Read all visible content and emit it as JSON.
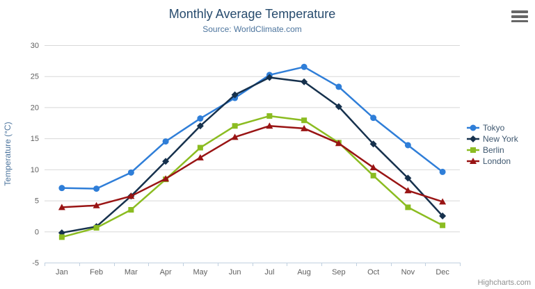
{
  "chart_data": {
    "type": "line",
    "title": "Monthly Average Temperature",
    "subtitle": "Source: WorldClimate.com",
    "categories": [
      "Jan",
      "Feb",
      "Mar",
      "Apr",
      "May",
      "Jun",
      "Jul",
      "Aug",
      "Sep",
      "Oct",
      "Nov",
      "Dec"
    ],
    "series": [
      {
        "name": "Tokyo",
        "color": "#2f7ed8",
        "marker": "circle",
        "values": [
          7.0,
          6.9,
          9.5,
          14.5,
          18.2,
          21.5,
          25.2,
          26.5,
          23.3,
          18.3,
          13.9,
          9.6
        ]
      },
      {
        "name": "New York",
        "color": "#16314d",
        "marker": "diamond",
        "values": [
          -0.2,
          0.8,
          5.7,
          11.3,
          17.0,
          22.0,
          24.8,
          24.1,
          20.1,
          14.1,
          8.6,
          2.5
        ]
      },
      {
        "name": "Berlin",
        "color": "#8bbc21",
        "marker": "square",
        "values": [
          -0.9,
          0.6,
          3.5,
          8.4,
          13.5,
          17.0,
          18.6,
          17.9,
          14.3,
          9.0,
          3.9,
          1.0
        ]
      },
      {
        "name": "London",
        "color": "#991414",
        "marker": "triangle",
        "values": [
          3.9,
          4.2,
          5.7,
          8.5,
          11.9,
          15.2,
          17.0,
          16.6,
          14.2,
          10.3,
          6.6,
          4.8
        ]
      }
    ],
    "xlabel": "",
    "ylabel": "Temperature (°C)",
    "ylim": [
      -5,
      30
    ],
    "ytick_interval": 5,
    "yticks": [
      -5,
      0,
      5,
      10,
      15,
      20,
      25,
      30
    ],
    "grid": true,
    "legend_position": "right"
  },
  "style_colors": {
    "title": "#274b6d",
    "subtitle": "#4d759e",
    "axis_label": "#606060",
    "axis_title": "#4d759e",
    "grid_line": "#d8d8d8",
    "axis_line": "#c0d0e0",
    "legend_text": "#3e576f",
    "menu_icon": "#666666",
    "credits": "#909090"
  },
  "credits": {
    "label": "Highcharts.com"
  },
  "export_menu": {
    "icon": "hamburger-menu-icon"
  }
}
